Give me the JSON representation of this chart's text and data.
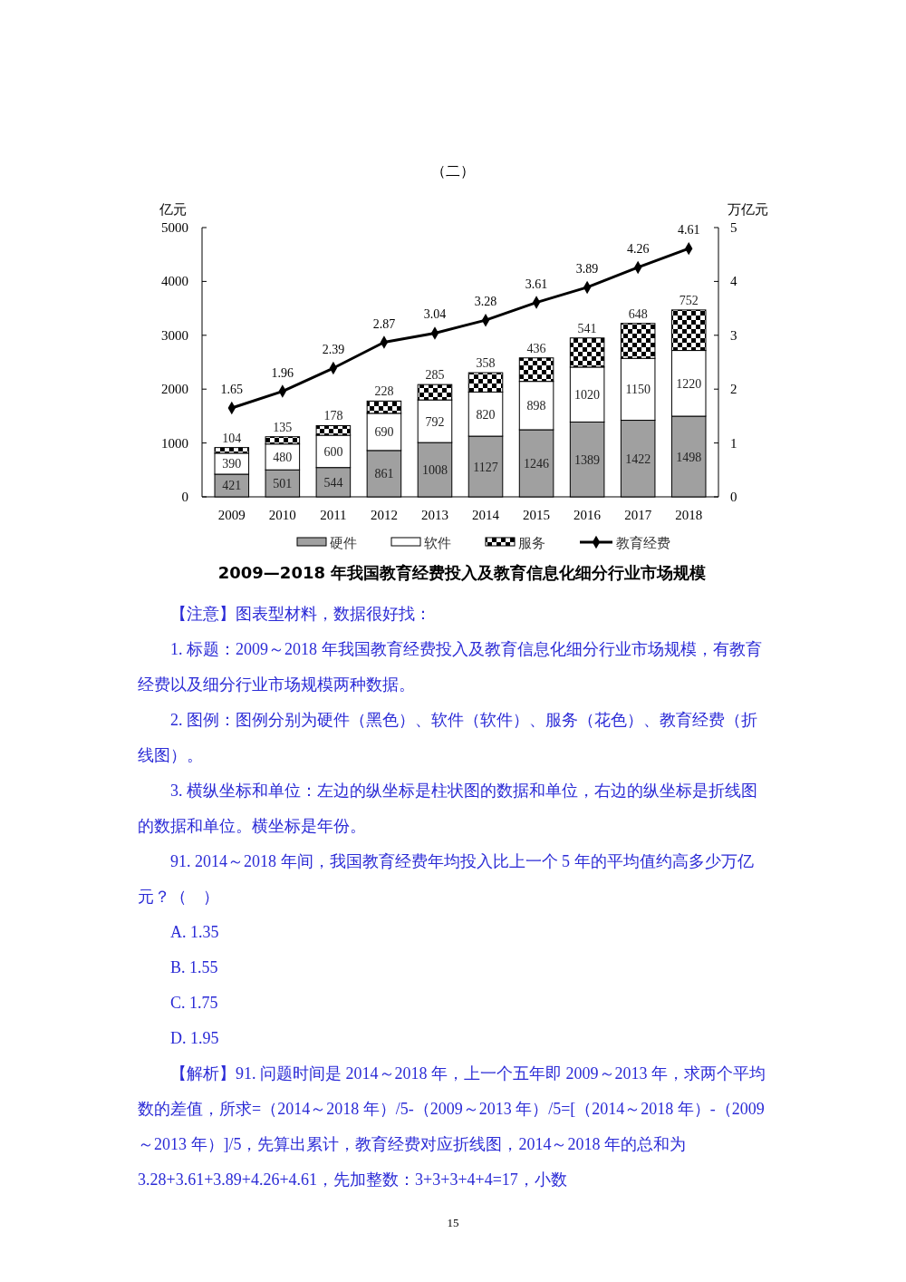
{
  "chart_data": {
    "type": "bar",
    "subtitle": "（二）",
    "title": "2009—2018 年我国教育经费投入及教育信息化细分行业市场规模",
    "ylabel": "亿元",
    "y2label": "万亿元",
    "categories": [
      "2009",
      "2010",
      "2011",
      "2012",
      "2013",
      "2014",
      "2015",
      "2016",
      "2017",
      "2018"
    ],
    "stacked": true,
    "data_labels": true,
    "legend": "bottom",
    "grid": false,
    "ylim": [
      0,
      5000
    ],
    "yticks": [
      0,
      1000,
      2000,
      3000,
      4000,
      5000
    ],
    "y2lim": [
      0,
      5
    ],
    "y2ticks": [
      0,
      1,
      2,
      3,
      4,
      5
    ],
    "series": [
      {
        "name": "硬件",
        "color": "#a0a0a0",
        "values": [
          421,
          501,
          544,
          861,
          1008,
          1127,
          1246,
          1389,
          1422,
          1498
        ]
      },
      {
        "name": "软件",
        "color": "#ffffff",
        "values": [
          390,
          480,
          600,
          690,
          792,
          820,
          898,
          1020,
          1150,
          1220
        ]
      },
      {
        "name": "服务",
        "color": "#000000",
        "values": [
          104,
          135,
          178,
          228,
          285,
          358,
          436,
          541,
          648,
          752
        ]
      },
      {
        "name": "教育经费",
        "type": "line",
        "axis": "y2",
        "marker": "diamond",
        "color": "#000000",
        "values": [
          1.65,
          1.96,
          2.39,
          2.87,
          3.04,
          3.28,
          3.61,
          3.89,
          4.26,
          4.61
        ]
      }
    ],
    "annotations": [
      "【注意】图表型材料，数据很好找：",
      "1. 标题：2009～2018 年我国教育经费投入及教育信息化细分行业市场规模，有教育经费以及细分行业市场规模两种数据。",
      "2. 图例：图例分别为硬件（黑色）、软件（软件）、服务（花色）、教育经费（折线图）。",
      "3. 横纵坐标和单位：左边的纵坐标是柱状图的数据和单位，右边的纵坐标是折线图的数据和单位。横坐标是年份。",
      "91. 2014～2018 年间，我国教育经费年均投入比上一个 5 年的平均值约高多少万亿元？（　）",
      "A. 1.35",
      "B. 1.55",
      "C. 1.75",
      "D. 1.95",
      "【解析】91. 问题时间是 2014～2018 年，上一个五年即 2009～2013 年，求两个平均数的差值，所求=（2014～2018 年）/5-（2009～2013 年）/5=[（2014～2018 年）-（2009～2013 年）]/5，先算出累计，教育经费对应折线图，2014～2018 年的总和为 3.28+3.61+3.89+4.26+4.61，先加整数：3+3+3+4+4=17，小数",
      "15"
    ]
  }
}
